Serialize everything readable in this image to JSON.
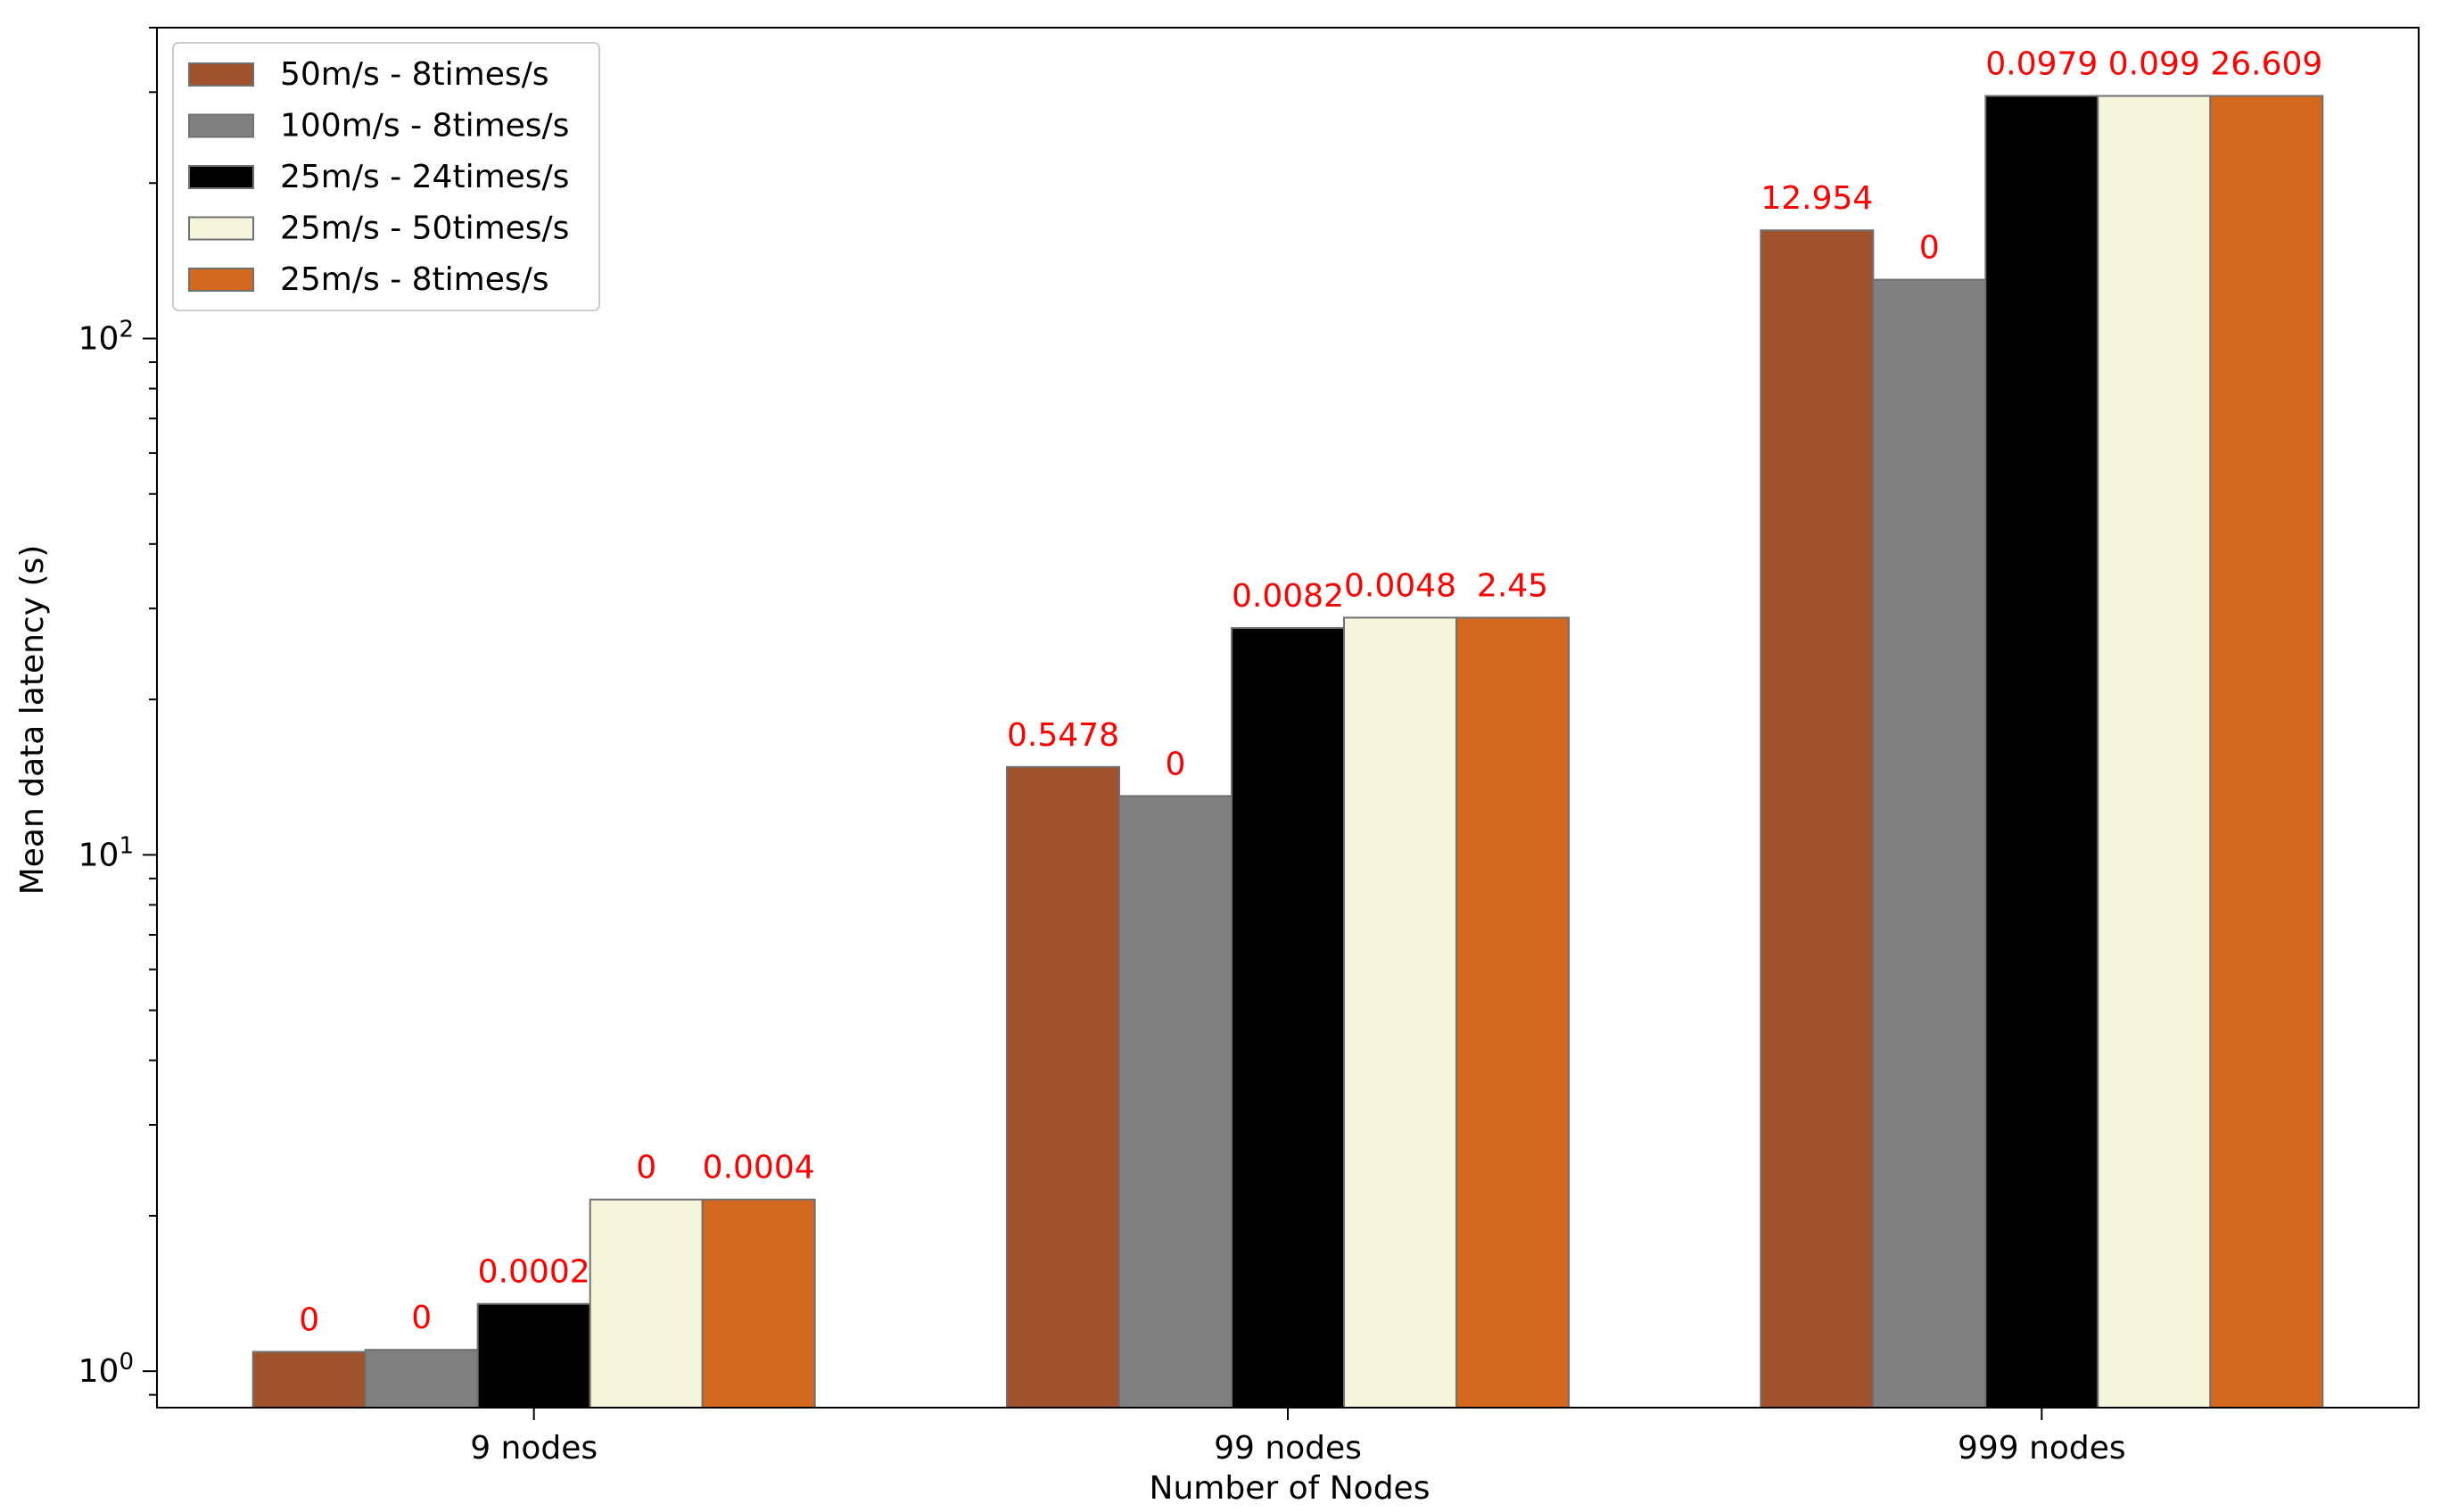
{
  "chart_data": {
    "type": "bar",
    "title": "",
    "xlabel": "Number of Nodes",
    "ylabel": "Mean data latency (s)",
    "yscale": "log",
    "ylim": [
      0.85,
      400
    ],
    "categories": [
      "9 nodes",
      "99 nodes",
      "999 nodes"
    ],
    "y_ticks": [
      {
        "value": 1,
        "base": "10",
        "exp": "0"
      },
      {
        "value": 10,
        "base": "10",
        "exp": "1"
      },
      {
        "value": 100,
        "base": "10",
        "exp": "2"
      }
    ],
    "legend_position": "upper-left",
    "edge_color": "#707070",
    "label_color": "#ff0000",
    "series": [
      {
        "name": "50m/s - 8times/s",
        "color": "#a0522d",
        "values": [
          1.09,
          14.8,
          162
        ],
        "labels": [
          "0",
          "0.5478",
          "12.954"
        ]
      },
      {
        "name": "100m/s - 8times/s",
        "color": "#808080",
        "values": [
          1.1,
          13.0,
          130
        ],
        "labels": [
          "0",
          "0",
          "0"
        ]
      },
      {
        "name": "25m/s - 24times/s",
        "color": "#000000",
        "values": [
          1.35,
          27.5,
          295
        ],
        "labels": [
          "0.0002",
          "0.0082",
          "0.0979"
        ]
      },
      {
        "name": "25m/s - 50times/s",
        "color": "#f5f5dc",
        "values": [
          2.15,
          28.8,
          295
        ],
        "labels": [
          "0",
          "0.0048",
          "0.099"
        ]
      },
      {
        "name": "25m/s - 8times/s",
        "color": "#d2691e",
        "values": [
          2.15,
          28.8,
          295
        ],
        "labels": [
          "0.0004",
          "2.45",
          "26.609"
        ]
      }
    ]
  }
}
